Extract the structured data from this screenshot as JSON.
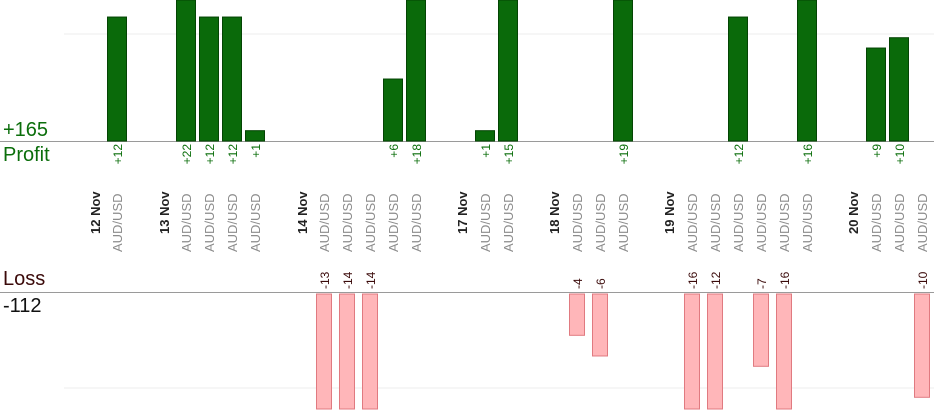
{
  "profit_total": "+165",
  "profit_label": "Profit",
  "loss_label": "Loss",
  "loss_total": "-112",
  "colors": {
    "profit_bar": "#0a6a0a",
    "profit_bar_edge": "#044404",
    "profit_text": "#0b6e0b",
    "loss_bar": "#ffb6b9",
    "loss_bar_edge": "#e07a80",
    "loss_text": "#3b0a0a",
    "category_text": "#8c8c8c",
    "day_text": "#222222",
    "axis": "#9a9a9a",
    "grid": "#eeeeee"
  },
  "chart_data": {
    "type": "bar",
    "title": "",
    "xlabel": "",
    "ylabel": "",
    "series": [
      {
        "name": "Profit",
        "values": [
          12,
          22,
          12,
          12,
          1,
          0,
          0,
          0,
          6,
          18,
          1,
          15,
          0,
          0,
          19,
          0,
          0,
          12,
          0,
          0,
          16,
          9,
          10,
          0
        ]
      },
      {
        "name": "Loss",
        "values": [
          0,
          0,
          0,
          0,
          0,
          -13,
          -14,
          -14,
          0,
          0,
          0,
          0,
          -4,
          -6,
          0,
          -16,
          -12,
          0,
          -7,
          -16,
          0,
          0,
          0,
          -10
        ]
      }
    ],
    "categories": [
      "AUD/USD",
      "AUD/USD",
      "AUD/USD",
      "AUD/USD",
      "AUD/USD",
      "AUD/USD",
      "AUD/USD",
      "AUD/USD",
      "AUD/USD",
      "AUD/USD",
      "AUD/USD",
      "AUD/USD",
      "AUD/USD",
      "AUD/USD",
      "AUD/USD",
      "AUD/USD",
      "AUD/USD",
      "AUD/USD",
      "AUD/USD",
      "AUD/USD",
      "AUD/USD",
      "AUD/USD",
      "AUD/USD",
      "AUD/USD"
    ],
    "profit_labels": [
      "+12",
      "+22",
      "+12",
      "+12",
      "+1",
      "",
      "",
      "",
      "+6",
      "+18",
      "+1",
      "+15",
      "",
      "",
      "+19",
      "",
      "",
      "+12",
      "",
      "",
      "+16",
      "+9",
      "+10",
      ""
    ],
    "loss_labels": [
      "",
      "",
      "",
      "",
      "",
      "-13",
      "-14",
      "-14",
      "",
      "",
      "",
      "",
      "-4",
      "-6",
      "",
      "-16",
      "-12",
      "",
      "-7",
      "-16",
      "",
      "",
      "",
      "-10"
    ],
    "days": [
      {
        "label": "12 Nov",
        "before_index": 0
      },
      {
        "label": "13 Nov",
        "before_index": 1
      },
      {
        "label": "14 Nov",
        "before_index": 5
      },
      {
        "label": "17 Nov",
        "before_index": 10
      },
      {
        "label": "18 Nov",
        "before_index": 12
      },
      {
        "label": "19 Nov",
        "before_index": 15
      },
      {
        "label": "20 Nov",
        "before_index": 21
      }
    ],
    "profit_ylim": [
      0,
      13
    ],
    "loss_ylim": [
      0,
      13
    ],
    "grid": true
  }
}
